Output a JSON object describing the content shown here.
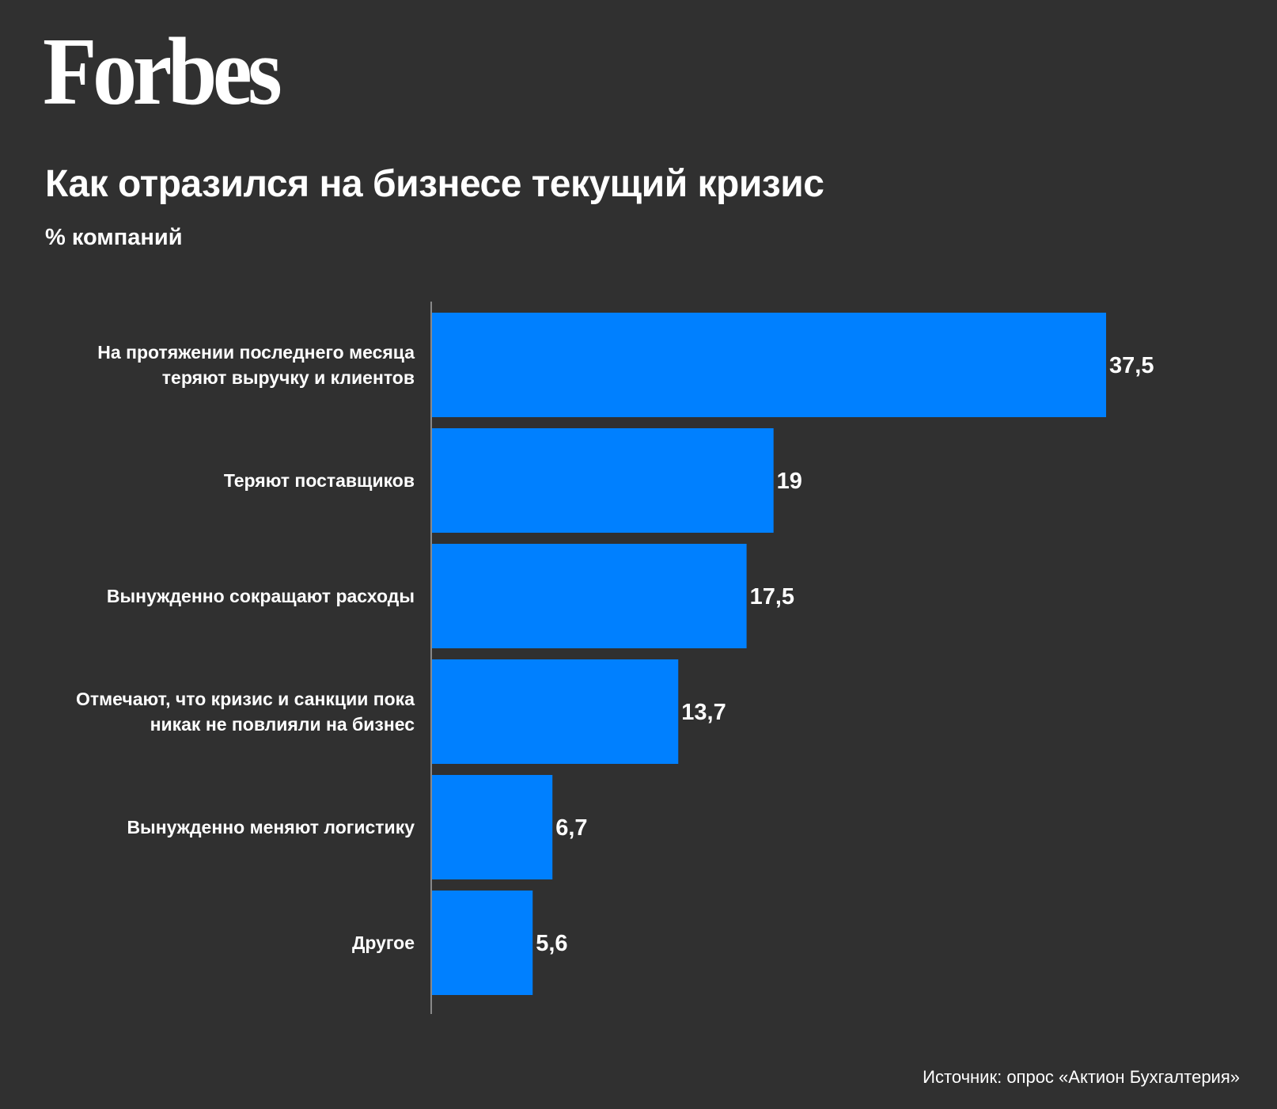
{
  "logo": "Forbes",
  "colors": {
    "bar": "#0080ff",
    "background": "#303030",
    "axis": "#888888"
  },
  "chart_data": {
    "type": "bar",
    "orientation": "horizontal",
    "title": "Как отразился на бизнесе текущий кризис",
    "subtitle": "% компаний",
    "categories": [
      [
        "На протяжении последнего месяца",
        "теряют выручку и клиентов"
      ],
      [
        "Теряют поставщиков"
      ],
      [
        "Вынужденно сокращают расходы"
      ],
      [
        "Отмечают, что кризис и санкции пока",
        "никак не повлияли на бизнес"
      ],
      [
        "Вынужденно меняют логистику"
      ],
      [
        "Другое"
      ]
    ],
    "values": [
      37.5,
      19,
      17.5,
      13.7,
      6.7,
      5.6
    ],
    "value_labels": [
      "37,5",
      "19",
      "17,5",
      "13,7",
      "6,7",
      "5,6"
    ],
    "xlim": [
      0,
      37.5
    ],
    "grid": false,
    "legend": "none"
  },
  "source": "Источник: опрос «Актион Бухгалтерия»"
}
